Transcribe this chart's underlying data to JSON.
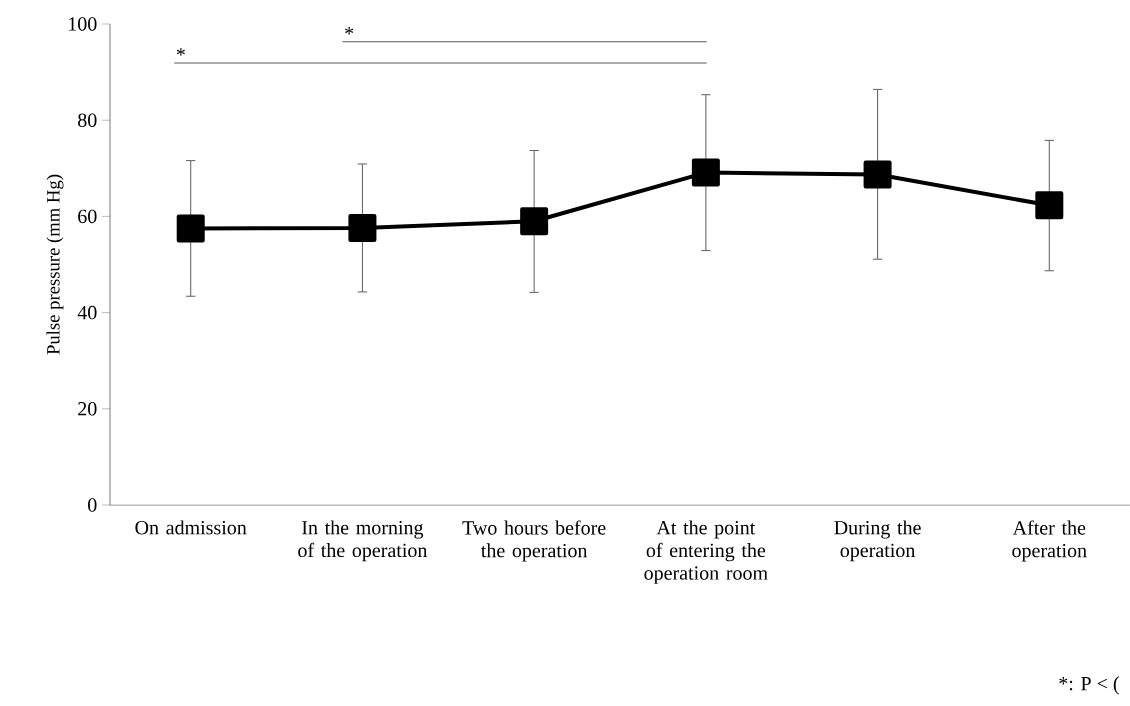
{
  "chart_data": {
    "type": "line",
    "ylabel": "Pulse pressure (mm Hg)",
    "categories": [
      "On admission",
      "In the morning of the operation",
      "Two hours before the operation",
      "At the point of entering the operation room",
      "During the operation",
      "After the operation"
    ],
    "series": [
      {
        "color": "#000000",
        "values": [
          57.5,
          57.6,
          59.0,
          69.1,
          68.7,
          62.3
        ],
        "errors": [
          [
            43.4,
            71.6
          ],
          [
            44.3,
            70.9
          ],
          [
            44.2,
            73.7
          ],
          [
            52.9,
            85.3
          ],
          [
            51.1,
            86.4
          ],
          [
            48.7,
            75.8
          ]
        ]
      }
    ],
    "ylim": [
      0,
      100
    ],
    "yticks": [
      0,
      20,
      40,
      60,
      80,
      100
    ],
    "marker": "square",
    "line_style": "solid",
    "grid": false,
    "annotations": [
      "*",
      "*",
      "*: P < ("
    ]
  }
}
